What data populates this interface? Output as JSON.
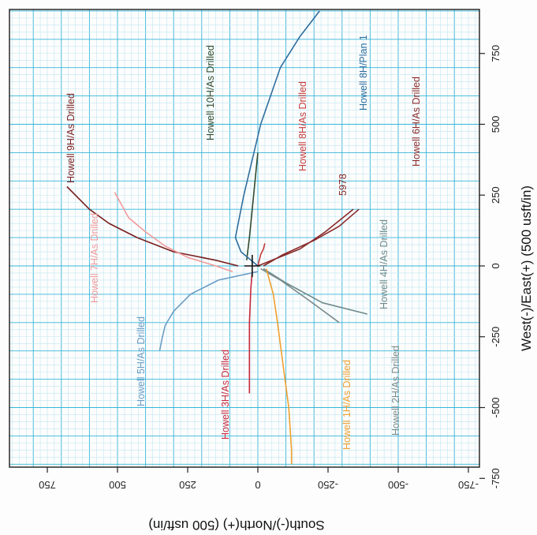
{
  "chart_data": {
    "type": "line",
    "title": "",
    "xlabel": "West(-)/East(+) (500 usft/in)",
    "ylabel": "South(-)/North(+) (500 usft/in)",
    "x_ticks": [
      "-750",
      "-500",
      "-250",
      "0",
      "250",
      "500",
      "750"
    ],
    "y_ticks": [
      "-750",
      "-500",
      "-250",
      "0",
      "250",
      "500",
      "750"
    ],
    "xlim": [
      -750,
      850
    ],
    "ylim": [
      -850,
      900
    ],
    "grid": true,
    "series": [
      {
        "name": "Howell 9H/As Drilled",
        "color": "#7a1f1f",
        "x": [
          0,
          20,
          50,
          100,
          150,
          200,
          280
        ],
        "y": [
          70,
          150,
          300,
          430,
          530,
          600,
          680
        ]
      },
      {
        "name": "Howell 7H/As Drilled",
        "color": "#f29a9a",
        "x": [
          -20,
          0,
          30,
          70,
          120,
          170,
          260
        ],
        "y": [
          90,
          150,
          250,
          330,
          400,
          460,
          510
        ]
      },
      {
        "name": "Howell 5H/As Drilled",
        "color": "#6a9cc4",
        "x": [
          -20,
          -50,
          -100,
          -160,
          -210,
          -250,
          -300
        ],
        "y": [
          0,
          140,
          240,
          300,
          330,
          340,
          350
        ]
      },
      {
        "name": "Howell 10H/As Drilled",
        "color": "#2e4a2e",
        "x": [
          20,
          100,
          200,
          300,
          400
        ],
        "y": [
          40,
          30,
          20,
          10,
          0
        ]
      },
      {
        "name": "Howell 8H/Plan 1",
        "color": "#2f6e9e",
        "x": [
          0,
          50,
          100,
          250,
          500,
          700,
          810,
          900
        ],
        "y": [
          0,
          60,
          80,
          50,
          -10,
          -80,
          -150,
          -220
        ]
      },
      {
        "name": "Howell 8H/As Drilled",
        "color": "#c83c3c",
        "x": [
          0,
          20,
          40,
          60,
          80
        ],
        "y": [
          0,
          -5,
          -10,
          -20,
          -25
        ]
      },
      {
        "name": "Howell 6H/As Drilled",
        "color": "#8a2a2a",
        "x": [
          0,
          40,
          90,
          140,
          200
        ],
        "y": [
          -20,
          -90,
          -200,
          -290,
          -360
        ]
      },
      {
        "name": "Howell 4H/As Drilled",
        "color": "#6e8a8a",
        "x": [
          -10,
          -60,
          -130,
          -170
        ],
        "y": [
          -20,
          -100,
          -230,
          -390
        ]
      },
      {
        "name": "Howell 3H/As Drilled",
        "color": "#c82a3c",
        "x": [
          -20,
          -80,
          -200,
          -320,
          -450
        ],
        "y": [
          20,
          25,
          30,
          30,
          30
        ]
      },
      {
        "name": "Howell 2H/As Drilled",
        "color": "#7a8a8a",
        "x": [
          -10,
          -50,
          -120,
          -200
        ],
        "y": [
          -10,
          -80,
          -180,
          -290
        ]
      },
      {
        "name": "Howell 1H/As Drilled",
        "color": "#f0a030",
        "x": [
          -10,
          -100,
          -200,
          -350,
          -500,
          -650,
          -700
        ],
        "y": [
          -30,
          -55,
          -70,
          -90,
          -110,
          -120,
          -120
        ]
      },
      {
        "name": "5978",
        "color": "#8a2a2a",
        "x": [
          0,
          60,
          120,
          200
        ],
        "y": [
          0,
          -150,
          -240,
          -340
        ]
      }
    ]
  },
  "labels": {
    "well_9h": "Howell 9H/As Drilled",
    "well_7h": "Howell 7H/As Drilled",
    "well_5h": "Howell 5H/As Drilled",
    "well_10h": "Howell 10H/As Drilled",
    "well_8h_plan": "Howell 8H/Plan 1",
    "well_8h": "Howell 8H/As Drilled",
    "well_6h": "Howell 6H/As Drilled",
    "well_4h": "Howell 4H/As Drilled",
    "well_3h": "Howell 3H/As Drilled",
    "well_2h": "Howell 2H/As Drilled",
    "well_1h": "Howell 1H/As Drilled",
    "point_5978": "5978"
  }
}
